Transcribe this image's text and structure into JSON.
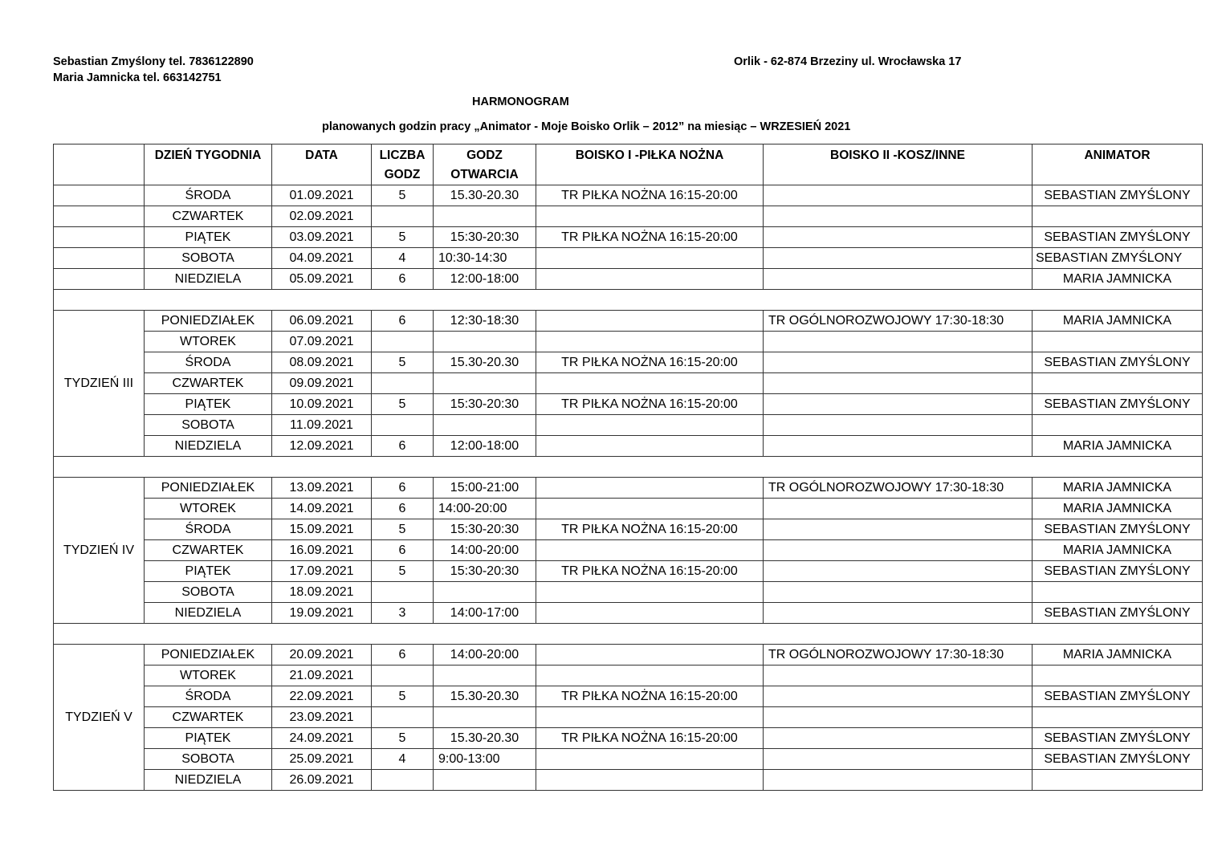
{
  "header": {
    "contact1": "Sebastian Zmyślony tel. 7836122890",
    "contact2": "Maria Jamnicka tel. 663142751",
    "address": "Orlik - 62-874 Brzeziny ul. Wrocławska 17",
    "title": "HARMONOGRAM",
    "subtitle": "planowanych godzin pracy „Animator  - Moje Boisko Orlik – 2012”  na miesiąc –  WRZESIEŃ 2021"
  },
  "columns": [
    "",
    "DZIEŃ TYGODNIA",
    "DATA",
    "LICZBA GODZ",
    "GODZ OTWARCIA",
    "BOISKO I -PIŁKA NOŻNA",
    "BOISKO II -KOSZ/INNE",
    "ANIMATOR"
  ],
  "weeks": [
    {
      "label": "",
      "merged": false,
      "rows": [
        [
          "ŚRODA",
          "01.09.2021",
          "5",
          "15.30-20.30",
          "TR PIŁKA NOŻNA 16:15-20:00",
          "",
          "SEBASTIAN ZMYŚLONY"
        ],
        [
          "CZWARTEK",
          "02.09.2021",
          "",
          "",
          "",
          "",
          ""
        ],
        [
          "PIĄTEK",
          "03.09.2021",
          "5",
          "15:30-20:30",
          "TR PIŁKA NOŻNA 16:15-20:00",
          "",
          "SEBASTIAN ZMYŚLONY"
        ],
        [
          "SOBOTA",
          "04.09.2021",
          "4",
          "10:30-14:30",
          "",
          "",
          "SEBASTIAN ZMYŚLONY"
        ],
        [
          "NIEDZIELA",
          "05.09.2021",
          "6",
          "12:00-18:00",
          "",
          "",
          "MARIA JAMNICKA"
        ]
      ]
    },
    {
      "label": "TYDZIEŃ III",
      "merged": true,
      "rows": [
        [
          "PONIEDZIAŁEK",
          "06.09.2021",
          "6",
          "12:30-18:30",
          "",
          "TR OGÓLNOROZWOJOWY 17:30-18:30",
          "MARIA JAMNICKA"
        ],
        [
          "WTOREK",
          "07.09.2021",
          "",
          "",
          "",
          "",
          ""
        ],
        [
          "ŚRODA",
          "08.09.2021",
          "5",
          "15.30-20.30",
          "TR PIŁKA NOŻNA 16:15-20:00",
          "",
          "SEBASTIAN ZMYŚLONY"
        ],
        [
          "CZWARTEK",
          "09.09.2021",
          "",
          "",
          "",
          "",
          ""
        ],
        [
          "PIĄTEK",
          "10.09.2021",
          "5",
          "15:30-20:30",
          "TR PIŁKA NOŻNA 16:15-20:00",
          "",
          "SEBASTIAN ZMYŚLONY"
        ],
        [
          "SOBOTA",
          "11.09.2021",
          "",
          "",
          "",
          "",
          ""
        ],
        [
          "NIEDZIELA",
          "12.09.2021",
          "6",
          "12:00-18:00",
          "",
          "",
          "MARIA JAMNICKA"
        ]
      ]
    },
    {
      "label": "TYDZIEŃ IV",
      "merged": true,
      "rows": [
        [
          "PONIEDZIAŁEK",
          "13.09.2021",
          "6",
          "15:00-21:00",
          "",
          "TR OGÓLNOROZWOJOWY 17:30-18:30",
          "MARIA JAMNICKA"
        ],
        [
          "WTOREK",
          "14.09.2021",
          "6",
          "14:00-20:00",
          "",
          "",
          "MARIA JAMNICKA"
        ],
        [
          "ŚRODA",
          "15.09.2021",
          "5",
          "15:30-20:30",
          "TR PIŁKA NOŻNA 16:15-20:00",
          "",
          "SEBASTIAN ZMYŚLONY"
        ],
        [
          "CZWARTEK",
          "16.09.2021",
          "6",
          "14:00-20:00",
          "",
          "",
          "MARIA JAMNICKA"
        ],
        [
          "PIĄTEK",
          "17.09.2021",
          "5",
          "15:30-20:30",
          "TR PIŁKA NOŻNA 16:15-20:00",
          "",
          "SEBASTIAN ZMYŚLONY"
        ],
        [
          "SOBOTA",
          "18.09.2021",
          "",
          "",
          "",
          "",
          ""
        ],
        [
          "NIEDZIELA",
          "19.09.2021",
          "3",
          "14:00-17:00",
          "",
          "",
          "SEBASTIAN ZMYŚLONY"
        ]
      ]
    },
    {
      "label": "TYDZIEŃ V",
      "merged": true,
      "rows": [
        [
          "PONIEDZIAŁEK",
          "20.09.2021",
          "6",
          "14:00-20:00",
          "",
          "TR OGÓLNOROZWOJOWY 17:30-18:30",
          "MARIA JAMNICKA"
        ],
        [
          "WTOREK",
          "21.09.2021",
          "",
          "",
          "",
          "",
          ""
        ],
        [
          "ŚRODA",
          "22.09.2021",
          "5",
          "15.30-20.30",
          "TR PIŁKA NOŻNA 16:15-20:00",
          "",
          "SEBASTIAN ZMYŚLONY"
        ],
        [
          "CZWARTEK",
          "23.09.2021",
          "",
          "",
          "",
          "",
          ""
        ],
        [
          "PIĄTEK",
          "24.09.2021",
          "5",
          "15.30-20.30",
          "TR PIŁKA NOŻNA 16:15-20:00",
          "",
          "SEBASTIAN ZMYŚLONY"
        ],
        [
          "SOBOTA",
          "25.09.2021",
          "4",
          "9:00-13:00",
          "",
          "",
          "SEBASTIAN ZMYŚLONY"
        ],
        [
          "NIEDZIELA",
          "26.09.2021",
          "",
          "",
          "",
          "",
          ""
        ]
      ]
    }
  ]
}
